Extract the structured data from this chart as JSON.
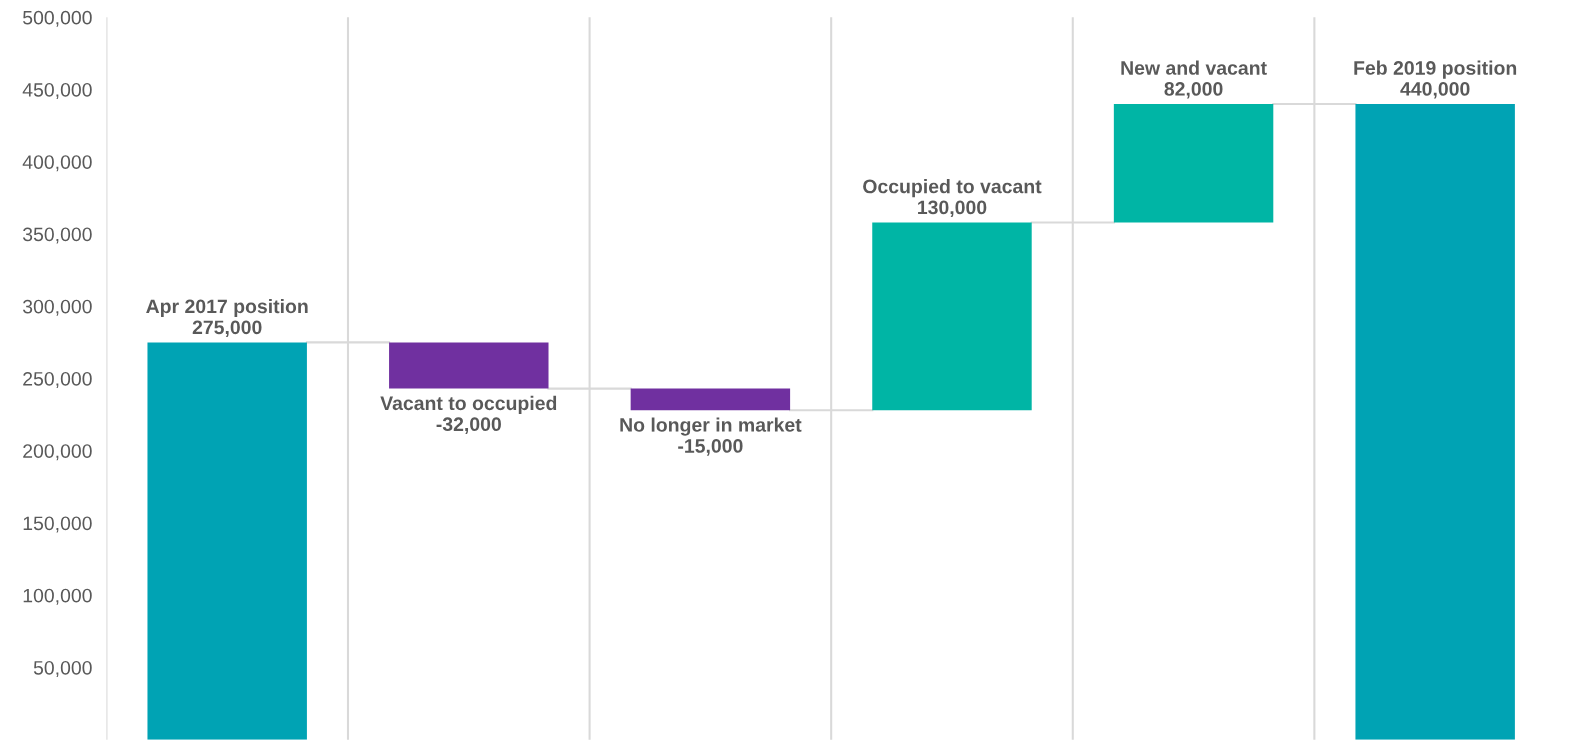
{
  "chart_data": {
    "type": "bar",
    "categories": [
      "Apr 2017 position",
      "Vacant to occupied",
      "No longer in market",
      "Occupied to vacant",
      "New and vacant",
      "Feb 2019 position"
    ],
    "values": [
      275000,
      -32000,
      -15000,
      130000,
      82000,
      440000
    ],
    "base": [
      0,
      275000,
      243000,
      228000,
      358000,
      0
    ],
    "colors": [
      "#00a3b4",
      "#7030a0",
      "#7030a0",
      "#00b5a5",
      "#00b5a5",
      "#00a3b4"
    ],
    "value_labels": [
      "275,000",
      "-32,000",
      "-15,000",
      "130,000",
      "82,000",
      "440,000"
    ],
    "ylim": [
      0,
      500000
    ],
    "yticks": [
      {
        "value": 50000,
        "label": "50,000"
      },
      {
        "value": 100000,
        "label": "100,000"
      },
      {
        "value": 150000,
        "label": "150,000"
      },
      {
        "value": 200000,
        "label": "200,000"
      },
      {
        "value": 250000,
        "label": "250,000"
      },
      {
        "value": 300000,
        "label": "300,000"
      },
      {
        "value": 350000,
        "label": "350,000"
      },
      {
        "value": 400000,
        "label": "400,000"
      },
      {
        "value": 450000,
        "label": "450,000"
      },
      {
        "value": 500000,
        "label": "500,000"
      }
    ],
    "grid": "x"
  }
}
